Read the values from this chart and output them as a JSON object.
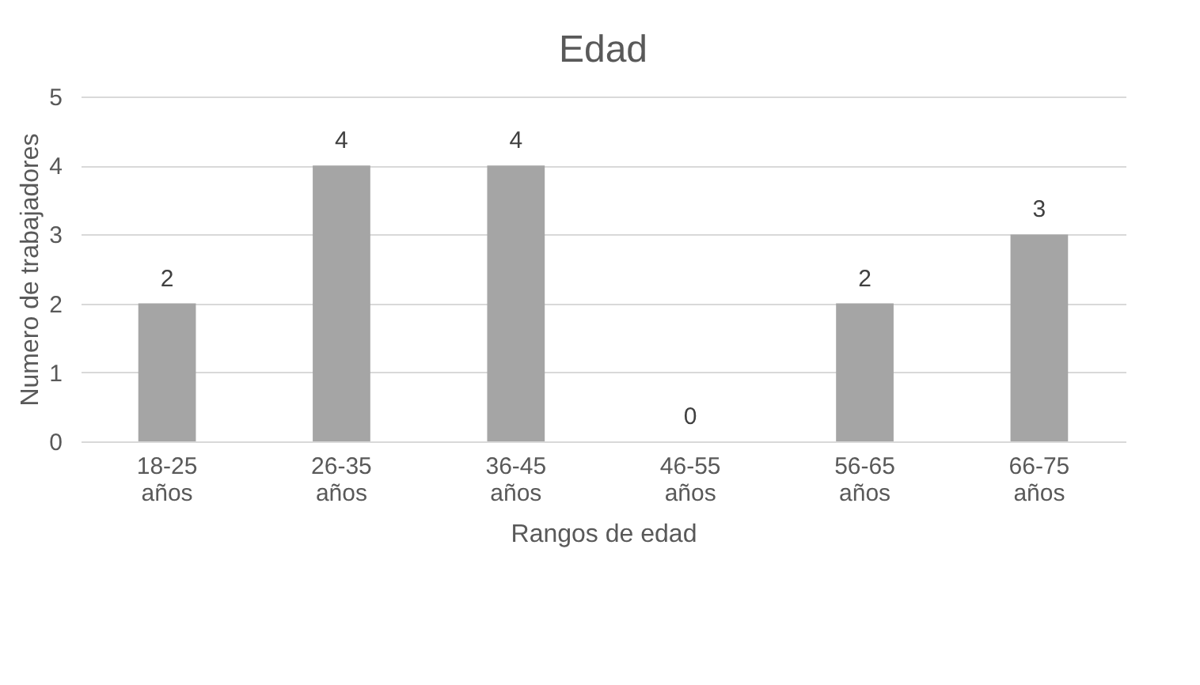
{
  "chart_data": {
    "type": "bar",
    "title": "Edad",
    "xlabel": "Rangos de edad",
    "ylabel": "Numero de trabajadores",
    "categories": [
      "18-25 años",
      "26-35 años",
      "36-45 años",
      "46-55 años",
      "56-65 años",
      "66-75 años"
    ],
    "values": [
      2,
      4,
      4,
      0,
      2,
      3
    ],
    "color": "#a5a5a5",
    "ylim": [
      0,
      5
    ],
    "yticks": [
      0,
      1,
      2,
      3,
      4,
      5
    ],
    "grid": "y",
    "data_labels": true
  }
}
